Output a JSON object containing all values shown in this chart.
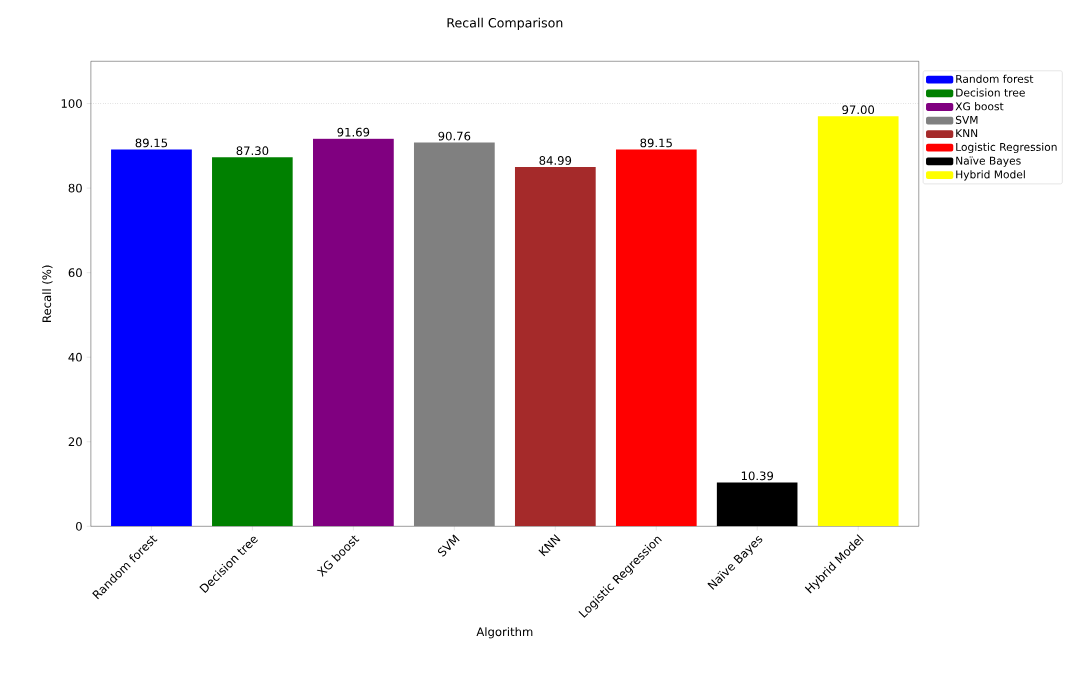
{
  "chart_data": {
    "type": "bar",
    "title": "Recall Comparison",
    "xlabel": "Algorithm",
    "ylabel": "Recall (%)",
    "categories": [
      "Random forest",
      "Decision tree",
      "XG boost",
      "SVM",
      "KNN",
      "Logistic Regression",
      "Naïve Bayes",
      "Hybrid Model"
    ],
    "series": [
      {
        "name": "Random forest",
        "color": "#0000ff",
        "values": [
          89.15,
          null,
          null,
          null,
          null,
          null,
          null,
          null
        ],
        "value_labels": [
          "89.15",
          null,
          null,
          null,
          null,
          null,
          null,
          null
        ]
      },
      {
        "name": "Decision tree",
        "color": "#008000",
        "values": [
          null,
          87.3,
          null,
          null,
          null,
          null,
          null,
          null
        ],
        "value_labels": [
          null,
          "87.30",
          null,
          null,
          null,
          null,
          null,
          null
        ]
      },
      {
        "name": "XG boost",
        "color": "#800080",
        "values": [
          null,
          null,
          91.69,
          null,
          null,
          null,
          null,
          null
        ],
        "value_labels": [
          null,
          null,
          "91.69",
          null,
          null,
          null,
          null,
          null
        ]
      },
      {
        "name": "SVM",
        "color": "#808080",
        "values": [
          null,
          null,
          null,
          90.76,
          null,
          null,
          null,
          null
        ],
        "value_labels": [
          null,
          null,
          null,
          "90.76",
          null,
          null,
          null,
          null
        ]
      },
      {
        "name": "KNN",
        "color": "#a52a2a",
        "values": [
          null,
          null,
          null,
          null,
          84.99,
          null,
          null,
          null
        ],
        "value_labels": [
          null,
          null,
          null,
          null,
          "84.99",
          null,
          null,
          null
        ]
      },
      {
        "name": "Logistic Regression",
        "color": "#ff0000",
        "values": [
          null,
          null,
          null,
          null,
          null,
          89.15,
          null,
          null
        ],
        "value_labels": [
          null,
          null,
          null,
          null,
          null,
          "89.15",
          null,
          null
        ]
      },
      {
        "name": "Naïve Bayes",
        "color": "#000000",
        "values": [
          null,
          null,
          null,
          null,
          null,
          null,
          10.39,
          null
        ],
        "value_labels": [
          null,
          null,
          null,
          null,
          null,
          null,
          "10.39",
          null
        ]
      },
      {
        "name": "Hybrid Model",
        "color": "#ffff00",
        "values": [
          null,
          null,
          null,
          null,
          null,
          null,
          null,
          97.0
        ],
        "value_labels": [
          null,
          null,
          null,
          null,
          null,
          null,
          null,
          "97.00"
        ]
      }
    ],
    "ylim": [
      0,
      110
    ],
    "yticks": [
      0,
      20,
      40,
      60,
      80,
      100
    ],
    "ref_lines": [
      {
        "axis": "y",
        "value": 100,
        "color": "#808080",
        "line_style": "dotted"
      }
    ],
    "legend": "right"
  }
}
